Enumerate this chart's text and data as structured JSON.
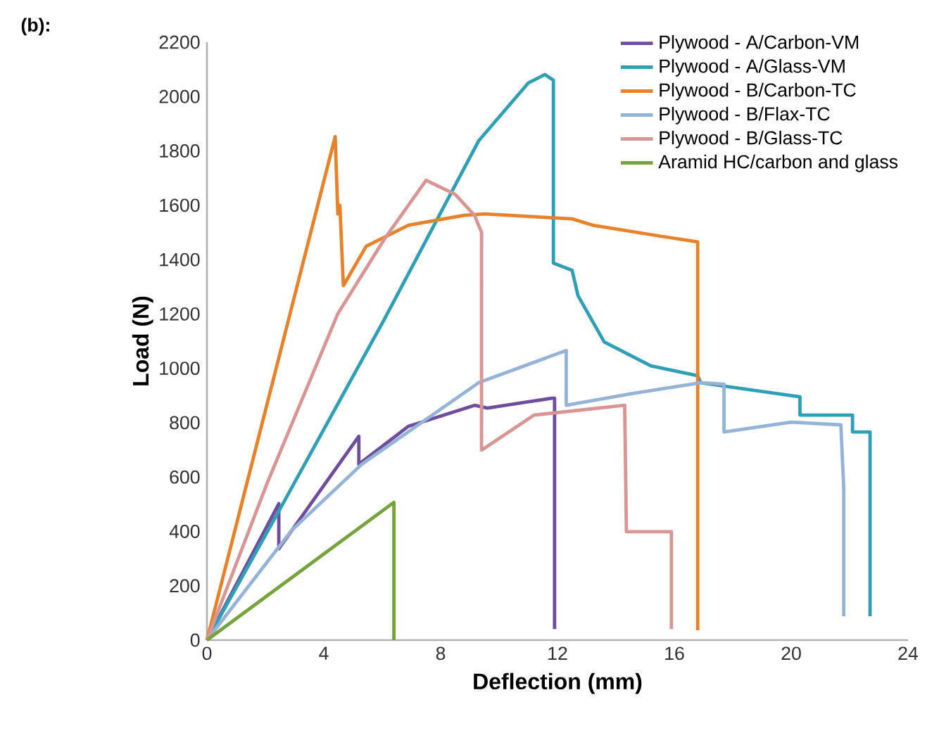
{
  "chart_data": {
    "type": "line",
    "title": "(b):",
    "xlabel": "Deflection (mm)",
    "ylabel": "Load (N)",
    "xlim": [
      0,
      24
    ],
    "xticks": [
      0,
      4,
      8,
      12,
      16,
      20,
      24
    ],
    "ylim": [
      0,
      2200
    ],
    "yticks": [
      0,
      200,
      400,
      600,
      800,
      1000,
      1200,
      1400,
      1600,
      1800,
      2000,
      2200
    ],
    "grid": false,
    "legend": "top right",
    "marker": "none",
    "line_style": "solid",
    "series": [
      {
        "name": "Plywood - A/Carbon-VM",
        "color": "#6e4c9e",
        "x": [
          0,
          2.46,
          2.46,
          5.2,
          5.2,
          6.9,
          9.16,
          9.6,
          11.8,
          11.9,
          11.9
        ],
        "values": [
          0,
          502,
          336,
          750,
          647,
          787,
          864,
          854,
          890,
          890,
          41
        ]
      },
      {
        "name": "Plywood - A/Glass-VM",
        "color": "#2e9fb5",
        "x": [
          0,
          2.55,
          6.07,
          9.3,
          11.0,
          11.57,
          11.86,
          11.86,
          12.5,
          12.7,
          13.6,
          15.2,
          16.8,
          16.9,
          20.3,
          20.3,
          22.1,
          22.1,
          22.7,
          22.7
        ],
        "values": [
          0,
          492,
          1180,
          1837,
          2050,
          2081,
          2060,
          1387,
          1361,
          1268,
          1097,
          1009,
          973,
          947,
          895,
          828,
          828,
          766,
          766,
          88
        ]
      },
      {
        "name": "Plywood - B/Carbon-TC",
        "color": "#e8822a",
        "x": [
          0,
          4.39,
          4.48,
          4.55,
          4.67,
          5.45,
          6.9,
          8.8,
          9.5,
          12.5,
          13.2,
          15.6,
          16.8,
          16.8
        ],
        "values": [
          0,
          1853,
          1568,
          1600,
          1304,
          1449,
          1527,
          1563,
          1568,
          1550,
          1527,
          1485,
          1465,
          36
        ]
      },
      {
        "name": "Plywood - B/Flax-TC",
        "color": "#95b3d7",
        "x": [
          0,
          2.9,
          5.3,
          9.3,
          12.3,
          12.3,
          14.5,
          16.9,
          17.7,
          17.7,
          20.0,
          21.7,
          21.8,
          21.8
        ],
        "values": [
          0,
          404,
          647,
          947,
          1066,
          864,
          906,
          947,
          942,
          766,
          802,
          792,
          559,
          88
        ]
      },
      {
        "name": "Plywood - B/Glass-TC",
        "color": "#d99594",
        "x": [
          0,
          2.07,
          4.48,
          6.07,
          7.5,
          8.5,
          9.16,
          9.4,
          9.4,
          11.2,
          14.3,
          14.36,
          15.9,
          15.9
        ],
        "values": [
          0,
          580,
          1201,
          1475,
          1692,
          1640,
          1563,
          1500,
          699,
          828,
          864,
          399,
          399,
          41
        ]
      },
      {
        "name": "Aramid HC/carbon and glass",
        "color": "#77a33c",
        "x": [
          0,
          6.4,
          6.4
        ],
        "values": [
          0,
          507,
          0
        ]
      }
    ]
  }
}
